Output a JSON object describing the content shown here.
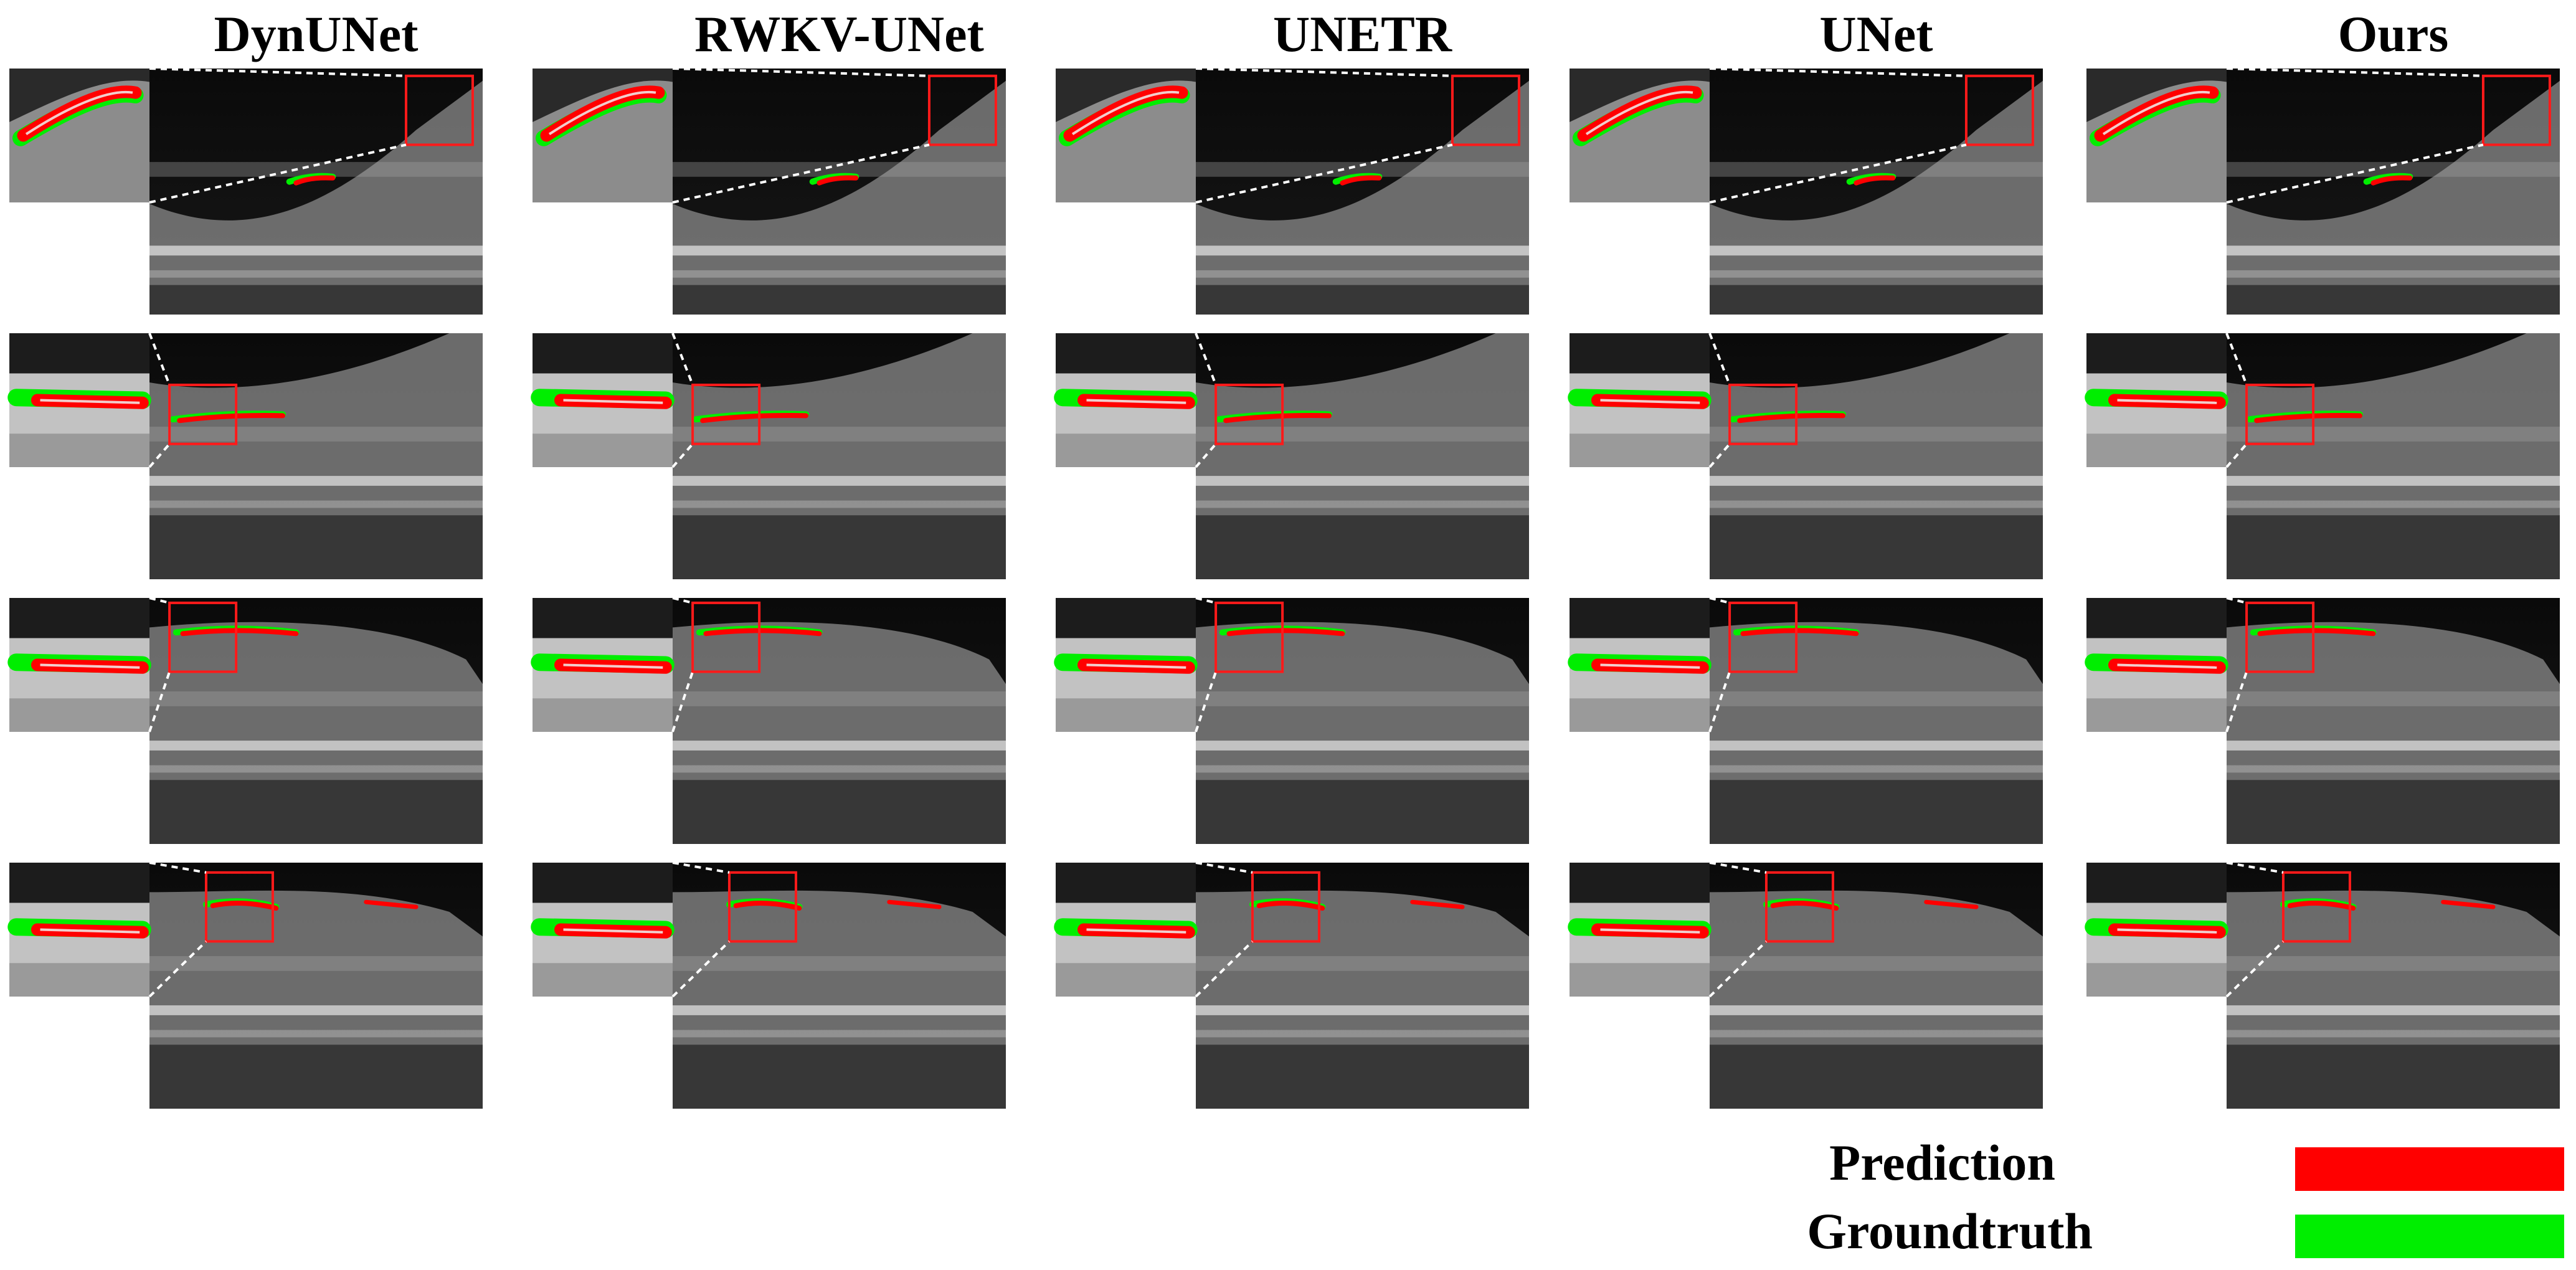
{
  "methods": [
    "DynUNet",
    "RWKV-UNet",
    "UNETR",
    "UNet",
    "Ours"
  ],
  "legend": [
    {
      "label": "Prediction",
      "color": "#ff0000"
    },
    {
      "label": "Groundtruth",
      "color": "#00ee00"
    }
  ],
  "colors": {
    "prediction": "#ff0000",
    "groundtruth": "#00ee00",
    "box": "#ff1a1a",
    "connector": "#ffffff"
  }
}
